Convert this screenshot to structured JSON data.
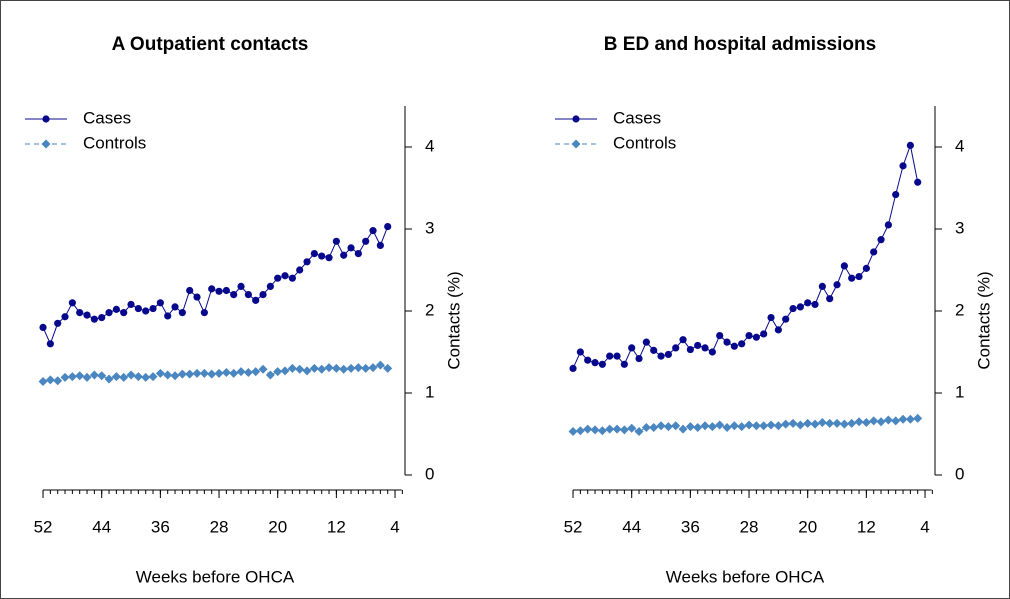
{
  "chart_data": [
    {
      "type": "line",
      "title": "A Outpatient contacts",
      "x_label": "Weeks before OHCA",
      "y_label": "Contacts (%)",
      "x": [
        52,
        51,
        50,
        49,
        48,
        47,
        46,
        45,
        44,
        43,
        42,
        41,
        40,
        39,
        38,
        37,
        36,
        35,
        34,
        33,
        32,
        31,
        30,
        29,
        28,
        27,
        26,
        25,
        24,
        23,
        22,
        21,
        20,
        19,
        18,
        17,
        16,
        15,
        14,
        13,
        12,
        11,
        10,
        9,
        8,
        7,
        6,
        5
      ],
      "series": [
        {
          "name": "Cases",
          "color": "#08088c",
          "marker": "circle",
          "line_style": "solid",
          "values": [
            1.8,
            1.6,
            1.85,
            1.93,
            2.1,
            1.98,
            1.95,
            1.9,
            1.92,
            1.98,
            2.02,
            1.98,
            2.08,
            2.03,
            2.0,
            2.03,
            2.1,
            1.94,
            2.05,
            1.98,
            2.25,
            2.17,
            1.98,
            2.27,
            2.24,
            2.25,
            2.2,
            2.3,
            2.2,
            2.13,
            2.2,
            2.3,
            2.4,
            2.43,
            2.4,
            2.5,
            2.6,
            2.7,
            2.67,
            2.65,
            2.85,
            2.68,
            2.77,
            2.7,
            2.85,
            2.98,
            2.8,
            3.03
          ]
        },
        {
          "name": "Controls",
          "color": "#4a86c0",
          "marker": "diamond",
          "line_style": "dashed",
          "values": [
            1.14,
            1.16,
            1.15,
            1.19,
            1.2,
            1.21,
            1.19,
            1.22,
            1.21,
            1.17,
            1.2,
            1.19,
            1.22,
            1.2,
            1.19,
            1.2,
            1.24,
            1.22,
            1.21,
            1.23,
            1.23,
            1.24,
            1.24,
            1.23,
            1.24,
            1.25,
            1.24,
            1.26,
            1.25,
            1.26,
            1.29,
            1.22,
            1.26,
            1.27,
            1.3,
            1.29,
            1.27,
            1.3,
            1.29,
            1.31,
            1.3,
            1.29,
            1.3,
            1.31,
            1.3,
            1.31,
            1.34,
            1.3
          ]
        }
      ],
      "xlim": [
        53,
        2
      ],
      "xticks": [
        52,
        44,
        36,
        28,
        20,
        12,
        4
      ],
      "xminor_step": 1,
      "ylim": [
        0,
        4.5
      ],
      "yticks": [
        0,
        1,
        2,
        3,
        4
      ],
      "legend": "upper left"
    },
    {
      "type": "line",
      "title": "B ED and hospital admissions",
      "x_label": "Weeks before OHCA",
      "y_label": "Contacts (%)",
      "x": [
        52,
        51,
        50,
        49,
        48,
        47,
        46,
        45,
        44,
        43,
        42,
        41,
        40,
        39,
        38,
        37,
        36,
        35,
        34,
        33,
        32,
        31,
        30,
        29,
        28,
        27,
        26,
        25,
        24,
        23,
        22,
        21,
        20,
        19,
        18,
        17,
        16,
        15,
        14,
        13,
        12,
        11,
        10,
        9,
        8,
        7,
        6,
        5
      ],
      "series": [
        {
          "name": "Cases",
          "color": "#08088c",
          "marker": "circle",
          "line_style": "solid",
          "values": [
            1.3,
            1.5,
            1.4,
            1.37,
            1.35,
            1.45,
            1.45,
            1.35,
            1.55,
            1.42,
            1.62,
            1.52,
            1.45,
            1.47,
            1.55,
            1.65,
            1.53,
            1.58,
            1.55,
            1.5,
            1.7,
            1.62,
            1.57,
            1.6,
            1.7,
            1.68,
            1.72,
            1.92,
            1.77,
            1.9,
            2.03,
            2.05,
            2.1,
            2.08,
            2.3,
            2.15,
            2.32,
            2.55,
            2.4,
            2.42,
            2.52,
            2.72,
            2.87,
            3.05,
            3.42,
            3.77,
            4.02,
            3.57
          ]
        },
        {
          "name": "Controls",
          "color": "#4a86c0",
          "marker": "diamond",
          "line_style": "dashed",
          "values": [
            0.53,
            0.54,
            0.56,
            0.55,
            0.54,
            0.56,
            0.56,
            0.55,
            0.57,
            0.53,
            0.58,
            0.58,
            0.6,
            0.59,
            0.6,
            0.56,
            0.59,
            0.58,
            0.6,
            0.59,
            0.61,
            0.58,
            0.6,
            0.59,
            0.61,
            0.6,
            0.6,
            0.61,
            0.6,
            0.62,
            0.63,
            0.61,
            0.63,
            0.62,
            0.64,
            0.63,
            0.63,
            0.62,
            0.63,
            0.65,
            0.64,
            0.66,
            0.65,
            0.67,
            0.66,
            0.68,
            0.68,
            0.69
          ]
        }
      ],
      "xlim": [
        53,
        2
      ],
      "xticks": [
        52,
        44,
        36,
        28,
        20,
        12,
        4
      ],
      "xminor_step": 1,
      "ylim": [
        0,
        4.5
      ],
      "yticks": [
        0,
        1,
        2,
        3,
        4
      ],
      "legend": "upper left"
    }
  ]
}
